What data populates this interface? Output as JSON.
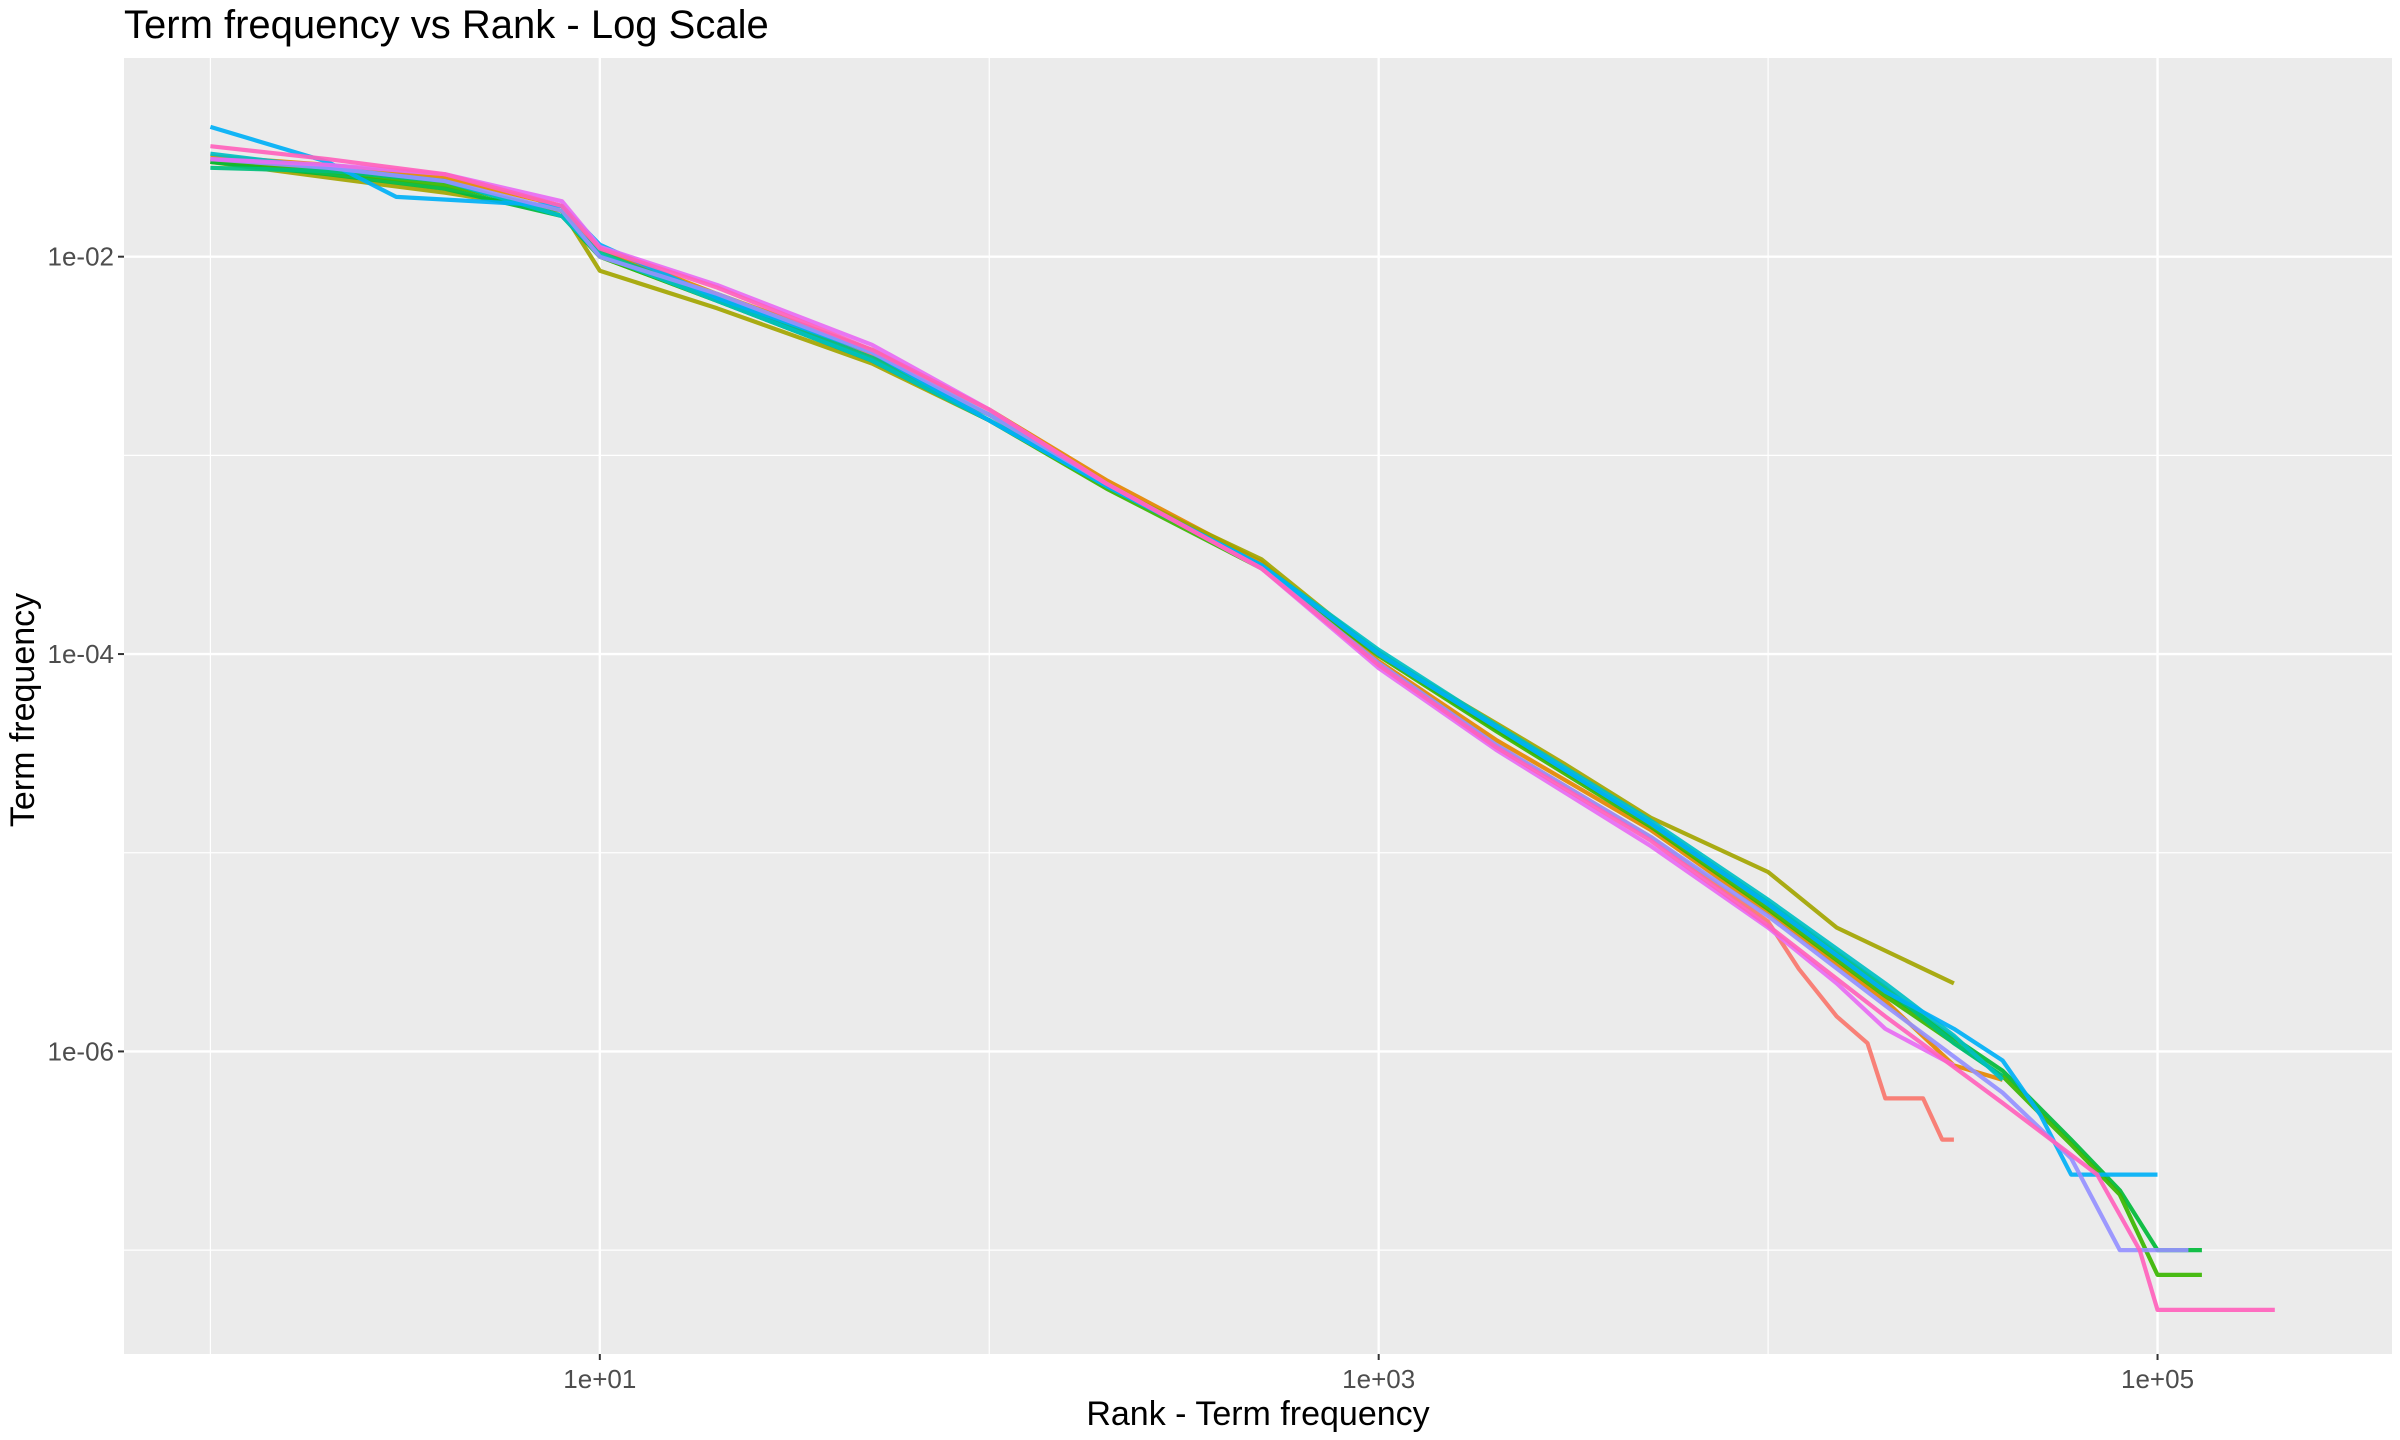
{
  "chart_data": {
    "type": "line",
    "title": "Term frequency vs Rank - Log Scale",
    "xlabel": "Rank - Term frequency",
    "ylabel": "Term frequency",
    "x_scale": "log10",
    "y_scale": "log10",
    "xlim": [
      0.6,
      400000
    ],
    "ylim": [
      3e-08,
      0.1
    ],
    "grid": true,
    "legend": "none",
    "x_ticks": [
      {
        "value": 10,
        "label": "1e+01"
      },
      {
        "value": 1000,
        "label": "1e+03"
      },
      {
        "value": 100000,
        "label": "1e+05"
      }
    ],
    "y_ticks": [
      {
        "value": 0.01,
        "label": "1e-02"
      },
      {
        "value": 0.0001,
        "label": "1e-04"
      },
      {
        "value": 1e-06,
        "label": "1e-06"
      }
    ],
    "background": "#ebebeb",
    "grid_color": "#ffffff",
    "series": [
      {
        "color": "#f8766d",
        "x": [
          1,
          2,
          4,
          8,
          10,
          20,
          50,
          100,
          200,
          500,
          1000,
          2000,
          5000,
          10000,
          12000,
          15000,
          18000,
          20000,
          25000,
          28000,
          30000
        ],
        "y": [
          0.03,
          0.028,
          0.024,
          0.016,
          0.011,
          0.0062,
          0.0032,
          0.0016,
          0.00072,
          0.00028,
          9e-05,
          3.5e-05,
          1.2e-05,
          4.5e-06,
          2.6e-06,
          1.5e-06,
          1.1e-06,
          5.8e-07,
          5.8e-07,
          3.6e-07,
          3.6e-07
        ]
      },
      {
        "color": "#e58700",
        "x": [
          1,
          2,
          4,
          8,
          10,
          20,
          50,
          100,
          200,
          500,
          1000,
          2000,
          5000,
          10000,
          20000,
          30000,
          40000
        ],
        "y": [
          0.032,
          0.029,
          0.025,
          0.018,
          0.011,
          0.0065,
          0.0034,
          0.0017,
          0.00075,
          0.00029,
          9.2e-05,
          3.7e-05,
          1.3e-05,
          5e-06,
          1.8e-06,
          8.5e-07,
          7.2e-07
        ]
      },
      {
        "color": "#a3a500",
        "x": [
          1,
          2,
          4,
          8,
          10,
          20,
          50,
          100,
          200,
          500,
          1000,
          2000,
          3000,
          5000,
          10000,
          15000,
          30000
        ],
        "y": [
          0.03,
          0.025,
          0.021,
          0.017,
          0.0085,
          0.0055,
          0.0029,
          0.0015,
          0.0007,
          0.0003,
          0.0001,
          4.5e-05,
          2.8e-05,
          1.5e-05,
          8e-06,
          4.2e-06,
          2.2e-06
        ]
      },
      {
        "color": "#00ba38",
        "x": [
          1,
          2,
          4,
          8,
          10,
          20,
          50,
          100,
          200,
          500,
          1000,
          2000,
          5000,
          10000,
          20000,
          40000,
          60000,
          80000,
          100000,
          130000
        ],
        "y": [
          0.03,
          0.026,
          0.022,
          0.016,
          0.01,
          0.006,
          0.003,
          0.0015,
          0.0007,
          0.00028,
          0.0001,
          4.2e-05,
          1.4e-05,
          5.5e-06,
          2e-06,
          8e-07,
          3.6e-07,
          2e-07,
          1e-07,
          1e-07
        ]
      },
      {
        "color": "#39b600",
        "x": [
          1,
          2,
          4,
          8,
          10,
          20,
          50,
          100,
          200,
          500,
          1000,
          2000,
          5000,
          10000,
          20000,
          40000,
          60000,
          80000,
          100000,
          130000
        ],
        "y": [
          0.031,
          0.027,
          0.023,
          0.017,
          0.01,
          0.006,
          0.003,
          0.0015,
          0.00068,
          0.00027,
          9.8e-05,
          4.1e-05,
          1.35e-05,
          5.2e-06,
          1.9e-06,
          7.5e-07,
          3.4e-07,
          1.9e-07,
          7.5e-08,
          7.5e-08
        ]
      },
      {
        "color": "#00bf7d",
        "x": [
          1,
          2,
          4,
          8,
          10,
          20,
          50,
          100,
          200,
          500,
          1000,
          2000,
          5000,
          10000,
          20000,
          30000,
          40000
        ],
        "y": [
          0.028,
          0.027,
          0.024,
          0.016,
          0.0105,
          0.0062,
          0.0031,
          0.0016,
          0.0007,
          0.00028,
          0.000102,
          4.3e-05,
          1.4e-05,
          5.6e-06,
          2.1e-06,
          1.1e-06,
          7.5e-07
        ]
      },
      {
        "color": "#00bfc4",
        "x": [
          1,
          2,
          4,
          8,
          10,
          20,
          50,
          100,
          200,
          500,
          1000,
          2000,
          5000,
          10000,
          20000,
          30000,
          40000
        ],
        "y": [
          0.033,
          0.028,
          0.024,
          0.016,
          0.0102,
          0.006,
          0.003,
          0.0015,
          0.0007,
          0.00028,
          0.000105,
          4.4e-05,
          1.45e-05,
          5.8e-06,
          2.2e-06,
          1.2e-06,
          7.2e-07
        ]
      },
      {
        "color": "#00b0f6",
        "x": [
          1,
          2,
          3,
          8,
          10,
          20,
          50,
          100,
          200,
          500,
          1000,
          2000,
          5000,
          10000,
          20000,
          30000,
          40000,
          50000,
          60000,
          100000
        ],
        "y": [
          0.045,
          0.03,
          0.02,
          0.018,
          0.0115,
          0.0062,
          0.0033,
          0.0015,
          0.0007,
          0.00028,
          0.0001,
          4.3e-05,
          1.4e-05,
          5.5e-06,
          2e-06,
          1.3e-06,
          9e-07,
          4.8e-07,
          2.4e-07,
          2.4e-07
        ]
      },
      {
        "color": "#9590ff",
        "x": [
          1,
          2,
          4,
          8,
          10,
          20,
          50,
          100,
          200,
          500,
          1000,
          2000,
          5000,
          10000,
          20000,
          40000,
          60000,
          80000,
          120000
        ],
        "y": [
          0.031,
          0.028,
          0.024,
          0.017,
          0.01,
          0.0065,
          0.0033,
          0.0016,
          0.00072,
          0.00027,
          9e-05,
          3.5e-05,
          1.2e-05,
          4.8e-06,
          1.7e-06,
          6.2e-07,
          2.9e-07,
          1e-07,
          1e-07
        ]
      },
      {
        "color": "#e76bf3",
        "x": [
          1,
          2,
          4,
          8,
          10,
          20,
          50,
          100,
          200,
          500,
          1000,
          2000,
          5000,
          10000,
          15000,
          20000,
          30000
        ],
        "y": [
          0.031,
          0.029,
          0.026,
          0.019,
          0.0112,
          0.0072,
          0.0036,
          0.0017,
          0.00072,
          0.00027,
          8.5e-05,
          3.3e-05,
          1.08e-05,
          4.2e-06,
          2.2e-06,
          1.3e-06,
          8.5e-07
        ]
      },
      {
        "color": "#ff62bc",
        "x": [
          1,
          2,
          4,
          8,
          10,
          20,
          50,
          100,
          200,
          500,
          1000,
          2000,
          5000,
          10000,
          20000,
          40000,
          70000,
          90000,
          100000,
          200000
        ],
        "y": [
          0.036,
          0.031,
          0.026,
          0.018,
          0.011,
          0.007,
          0.0034,
          0.0017,
          0.00072,
          0.00027,
          8.8e-05,
          3.4e-05,
          1.15e-05,
          4.3e-06,
          1.5e-06,
          5.5e-07,
          2.4e-07,
          1e-07,
          5e-08,
          5e-08
        ]
      }
    ]
  }
}
